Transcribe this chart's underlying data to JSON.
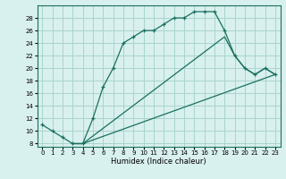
{
  "xlabel": "Humidex (Indice chaleur)",
  "bg_color": "#d8f0ee",
  "grid_color": "#aad4cc",
  "line_color": "#1a7060",
  "xlim": [
    -0.5,
    23.5
  ],
  "ylim": [
    7.5,
    30
  ],
  "xticks": [
    0,
    1,
    2,
    3,
    4,
    5,
    6,
    7,
    8,
    9,
    10,
    11,
    12,
    13,
    14,
    15,
    16,
    17,
    18,
    19,
    20,
    21,
    22,
    23
  ],
  "yticks": [
    8,
    10,
    12,
    14,
    16,
    18,
    20,
    22,
    24,
    26,
    28
  ],
  "curve1_x": [
    0,
    1,
    2,
    3,
    4,
    5,
    6,
    7,
    8,
    9,
    10,
    11,
    12,
    13,
    14,
    15,
    16,
    17,
    18,
    19,
    20,
    21,
    22,
    23
  ],
  "curve1_y": [
    11,
    10,
    9,
    8,
    8,
    12,
    17,
    20,
    24,
    25,
    26,
    26,
    27,
    28,
    28,
    29,
    29,
    29,
    26,
    22,
    20,
    19,
    20,
    19
  ],
  "curve2_x": [
    3,
    4,
    23
  ],
  "curve2_y": [
    8,
    8,
    19
  ],
  "curve3_x": [
    3,
    4,
    18,
    19,
    20,
    21,
    22,
    23
  ],
  "curve3_y": [
    8,
    8,
    25,
    22,
    20,
    19,
    20,
    19
  ],
  "marker_x": [
    0,
    1,
    2,
    3,
    4,
    5,
    6,
    7,
    8,
    9,
    10,
    11,
    12,
    13,
    14,
    15,
    16,
    17,
    18,
    19,
    20,
    21,
    22,
    23
  ],
  "marker_y": [
    11,
    10,
    9,
    8,
    8,
    12,
    17,
    20,
    24,
    25,
    26,
    26,
    27,
    28,
    28,
    29,
    29,
    29,
    26,
    22,
    20,
    19,
    20,
    19
  ]
}
